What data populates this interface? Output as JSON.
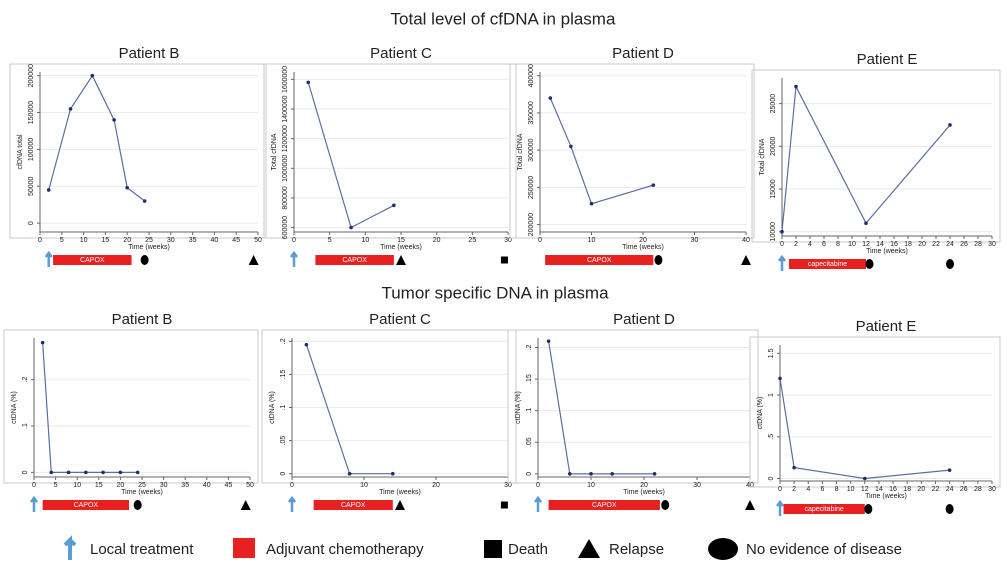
{
  "title": "Total level of cfDNA in plasma",
  "subtitle": "Tumor specific DNA in plasma",
  "legend": [
    "Local treatment",
    "Adjuvant chemotherapy",
    "Death",
    "Relapse",
    "No evidence of disease"
  ],
  "chart_data": [
    {
      "type": "line",
      "title": "Patient B",
      "xlabel": "Time (weeks)",
      "ylabel": "cfDNA total",
      "color": "#5a6fa0",
      "x": [
        2,
        7,
        12,
        17,
        20,
        24
      ],
      "values": [
        45000,
        155000,
        200000,
        140000,
        48000,
        30000
      ],
      "xlim": [
        0,
        50
      ],
      "xticks": [
        0,
        5,
        10,
        15,
        20,
        25,
        30,
        35,
        40,
        45,
        50
      ],
      "ylim": [
        -12000,
        205000
      ],
      "yticks": [
        0,
        50000,
        100000,
        150000,
        200000
      ],
      "grid": true,
      "treatment": {
        "label": "CAPOX",
        "start": 3,
        "end": 21
      },
      "events": [
        {
          "kind": "arrow",
          "x": 2
        },
        {
          "kind": "circle",
          "x": 24
        },
        {
          "kind": "triangle",
          "x": 49
        }
      ]
    },
    {
      "type": "line",
      "title": "Patient C",
      "xlabel": "Time (weeks)",
      "ylabel": "Total cfDNA",
      "color": "#5a6fa0",
      "x": [
        2,
        8,
        14
      ],
      "values": [
        1580000,
        600000,
        750000
      ],
      "xlim": [
        0,
        30
      ],
      "xticks": [
        0,
        5,
        10,
        15,
        20,
        25,
        30
      ],
      "ylim": [
        570000,
        1650000
      ],
      "yticks": [
        600000,
        800000,
        1000000,
        1200000,
        1400000,
        1600000
      ],
      "grid": true,
      "treatment": {
        "label": "CAPOX",
        "start": 3,
        "end": 14
      },
      "events": [
        {
          "kind": "arrow",
          "x": 0
        },
        {
          "kind": "triangle",
          "x": 15
        },
        {
          "kind": "square",
          "x": 29.5
        }
      ]
    },
    {
      "type": "line",
      "title": "Patient D",
      "xlabel": "Time (weeks)",
      "ylabel": "Total cfDNA",
      "color": "#5a6fa0",
      "x": [
        2,
        6,
        10,
        22
      ],
      "values": [
        370000,
        305000,
        228000,
        253000
      ],
      "xlim": [
        0,
        40
      ],
      "xticks": [
        0,
        10,
        20,
        30,
        40
      ],
      "ylim": [
        190000,
        405000
      ],
      "yticks": [
        200000,
        250000,
        300000,
        350000,
        400000
      ],
      "grid": true,
      "treatment": {
        "label": "CAPOX",
        "start": 1,
        "end": 22
      },
      "events": [
        {
          "kind": "circle",
          "x": 23
        },
        {
          "kind": "triangle",
          "x": 40
        }
      ]
    },
    {
      "type": "line",
      "title": "Patient E",
      "xlabel": "Time (weeks)",
      "ylabel": "Total cfDNA",
      "color": "#5a6fa0",
      "x": [
        0,
        2,
        12,
        24
      ],
      "values": [
        10000,
        27000,
        11000,
        22500
      ],
      "xlim": [
        0,
        30
      ],
      "xticks": [
        0,
        2,
        4,
        6,
        8,
        10,
        12,
        14,
        16,
        18,
        20,
        22,
        24,
        26,
        28,
        30
      ],
      "ylim": [
        9500,
        28000
      ],
      "yticks": [
        10000,
        15000,
        20000,
        25000
      ],
      "grid": true,
      "treatment": {
        "label": "capecitabine",
        "start": 1,
        "end": 12
      },
      "events": [
        {
          "kind": "arrow",
          "x": 0
        },
        {
          "kind": "circle",
          "x": 12.5
        },
        {
          "kind": "circle",
          "x": 24
        }
      ]
    },
    {
      "type": "line",
      "title": "Patient B",
      "xlabel": "Time (weeks)",
      "ylabel": "ctDNA (%)",
      "color": "#5a6fa0",
      "x": [
        2,
        4,
        8,
        12,
        16,
        20,
        24
      ],
      "values": [
        0.28,
        0,
        0,
        0,
        0,
        0,
        0
      ],
      "xlim": [
        0,
        50
      ],
      "xticks": [
        0,
        5,
        10,
        15,
        20,
        25,
        30,
        35,
        40,
        45,
        50
      ],
      "ylim": [
        -0.01,
        0.29
      ],
      "yticks": [
        0,
        {
          "value": 0.1,
          "label": ".1"
        },
        {
          "value": 0.2,
          "label": ".2"
        }
      ],
      "grid": true,
      "treatment": {
        "label": "CAPOX",
        "start": 2,
        "end": 22
      },
      "events": [
        {
          "kind": "arrow",
          "x": 0
        },
        {
          "kind": "circle",
          "x": 24
        },
        {
          "kind": "triangle",
          "x": 49
        }
      ]
    },
    {
      "type": "line",
      "title": "Patient C",
      "xlabel": "Time (weeks)",
      "ylabel": "ctDNA (%)",
      "color": "#5a6fa0",
      "x": [
        2,
        8,
        14
      ],
      "values": [
        0.195,
        0,
        0
      ],
      "xlim": [
        0,
        30
      ],
      "xticks": [
        0,
        10,
        20,
        30
      ],
      "ylim": [
        -0.005,
        0.205
      ],
      "yticks": [
        0,
        {
          "value": 0.05,
          "label": ".05"
        },
        {
          "value": 0.1,
          "label": ".1"
        },
        {
          "value": 0.15,
          "label": ".15"
        },
        {
          "value": 0.2,
          "label": ".2"
        }
      ],
      "grid": true,
      "treatment": {
        "label": "CAPOX",
        "start": 3,
        "end": 14
      },
      "events": [
        {
          "kind": "arrow",
          "x": 0
        },
        {
          "kind": "triangle",
          "x": 15
        },
        {
          "kind": "square",
          "x": 29.5
        }
      ]
    },
    {
      "type": "line",
      "title": "Patient D",
      "xlabel": "Time (weeks)",
      "ylabel": "ctDNA (%)",
      "color": "#5a6fa0",
      "x": [
        2,
        6,
        10,
        14,
        22
      ],
      "values": [
        0.21,
        0,
        0,
        0,
        0
      ],
      "xlim": [
        0,
        40
      ],
      "xticks": [
        0,
        10,
        20,
        30,
        40
      ],
      "ylim": [
        -0.005,
        0.215
      ],
      "yticks": [
        0,
        {
          "value": 0.05,
          "label": ".05"
        },
        {
          "value": 0.1,
          "label": ".1"
        },
        {
          "value": 0.15,
          "label": ".15"
        },
        {
          "value": 0.2,
          "label": ".2"
        }
      ],
      "grid": true,
      "treatment": {
        "label": "CAPOX",
        "start": 2,
        "end": 23
      },
      "events": [
        {
          "kind": "arrow",
          "x": 0
        },
        {
          "kind": "circle",
          "x": 24
        },
        {
          "kind": "triangle",
          "x": 40
        }
      ]
    },
    {
      "type": "line",
      "title": "Patient E",
      "xlabel": "Time (weeks)",
      "ylabel": "ctDNA (%)",
      "color": "#5a6fa0",
      "x": [
        0,
        2,
        12,
        24
      ],
      "values": [
        1.2,
        0.13,
        0,
        0.1
      ],
      "xlim": [
        0,
        30
      ],
      "xticks": [
        0,
        2,
        4,
        6,
        8,
        10,
        12,
        14,
        16,
        18,
        20,
        22,
        24,
        26,
        28,
        30
      ],
      "ylim": [
        -0.03,
        1.6
      ],
      "yticks": [
        0,
        {
          "value": 0.5,
          "label": ".5"
        },
        1,
        1.5
      ],
      "grid": true,
      "treatment": {
        "label": "capecitabine",
        "start": 0.5,
        "end": 12
      },
      "events": [
        {
          "kind": "arrow",
          "x": 0
        },
        {
          "kind": "circle",
          "x": 12.5
        },
        {
          "kind": "circle",
          "x": 24
        }
      ]
    }
  ]
}
